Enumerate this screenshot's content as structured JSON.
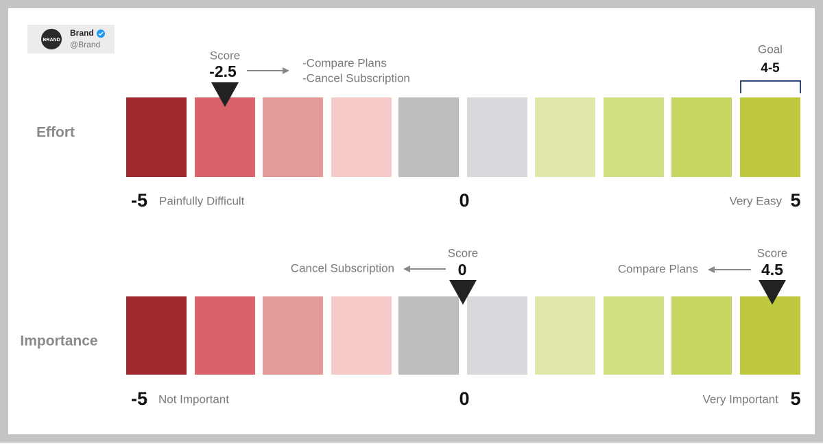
{
  "brand": {
    "logo": "BRAND",
    "name": "Brand",
    "handle": "@Brand"
  },
  "effort": {
    "label": "Effort",
    "scale": {
      "min": "-5",
      "min_label": "Painfully Difficult",
      "mid": "0",
      "max_label": "Very Easy",
      "max": "5"
    },
    "score": {
      "title": "Score",
      "value": "-2.5",
      "notes": [
        "-Compare Plans",
        "-Cancel Subscription"
      ]
    },
    "goal": {
      "title": "Goal",
      "value": "4-5"
    }
  },
  "importance": {
    "label": "Importance",
    "scale": {
      "min": "-5",
      "min_label": "Not Important",
      "mid": "0",
      "max_label": "Very Important",
      "max": "5"
    },
    "scores": [
      {
        "title": "Score",
        "value": "0",
        "note": "Cancel Subscription"
      },
      {
        "title": "Score",
        "value": "4.5",
        "note": "Compare Plans"
      }
    ]
  }
}
